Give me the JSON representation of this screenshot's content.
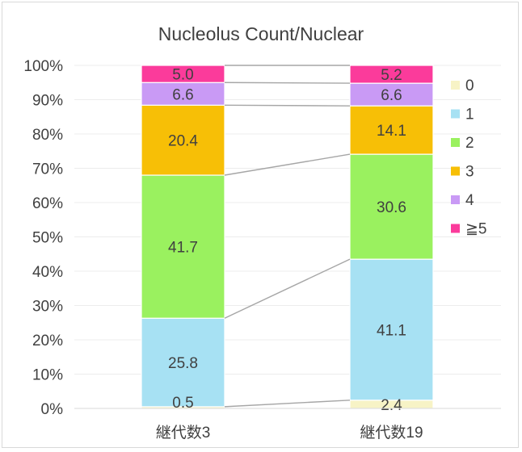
{
  "chart_data": {
    "type": "bar",
    "stacked": true,
    "normalized": true,
    "title": "Nucleolus Count/Nuclear",
    "categories": [
      "継代数3",
      "継代数19"
    ],
    "series": [
      {
        "name": "0",
        "color": "#f7f3c6",
        "values": [
          0.5,
          2.4
        ]
      },
      {
        "name": "1",
        "color": "#a7e1f3",
        "values": [
          25.8,
          41.1
        ]
      },
      {
        "name": "2",
        "color": "#9af15f",
        "values": [
          41.7,
          30.6
        ]
      },
      {
        "name": "3",
        "color": "#f7bf06",
        "values": [
          20.4,
          14.1
        ]
      },
      {
        "name": "4",
        "color": "#c99af5",
        "values": [
          6.6,
          6.6
        ]
      },
      {
        "name": "≧5",
        "color": "#fb3b9b",
        "values": [
          5.0,
          5.2
        ]
      }
    ],
    "y_ticks": [
      "0%",
      "10%",
      "20%",
      "30%",
      "40%",
      "50%",
      "60%",
      "70%",
      "80%",
      "90%",
      "100%"
    ],
    "ylim": [
      0,
      100
    ],
    "grid": true,
    "series_lines": true,
    "legend_position": "right"
  }
}
